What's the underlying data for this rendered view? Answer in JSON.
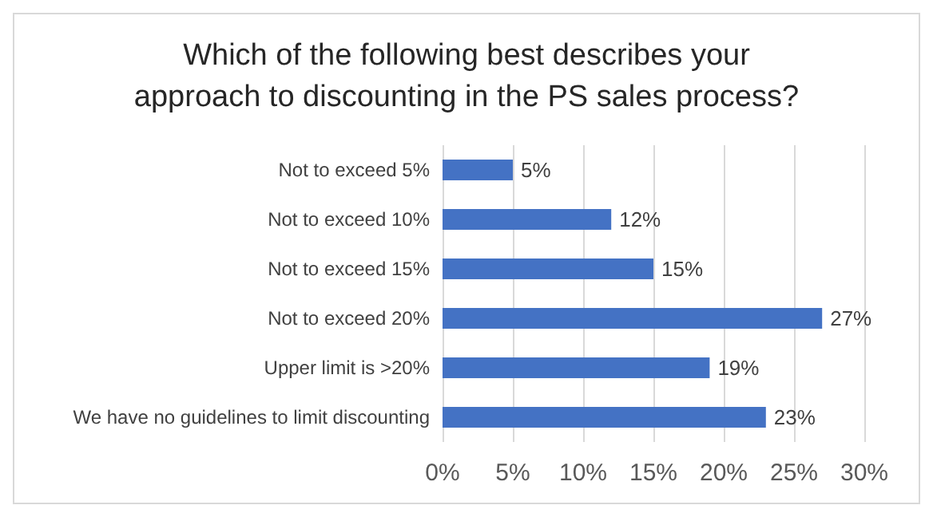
{
  "chart_data": {
    "type": "bar",
    "orientation": "horizontal",
    "title": "Which of the following best describes your\napproach to discounting in the PS sales process?",
    "categories": [
      "Not to exceed 5%",
      "Not to exceed 10%",
      "Not to exceed 15%",
      "Not to exceed 20%",
      "Upper limit is >20%",
      "We have no guidelines to limit discounting"
    ],
    "values": [
      5,
      12,
      15,
      27,
      19,
      23
    ],
    "value_labels": [
      "5%",
      "12%",
      "15%",
      "27%",
      "19%",
      "23%"
    ],
    "color": "#4472c4",
    "xlim": [
      0,
      30
    ],
    "xticks": [
      {
        "value": 0,
        "label": "0%"
      },
      {
        "value": 5,
        "label": "5%"
      },
      {
        "value": 10,
        "label": "10%"
      },
      {
        "value": 15,
        "label": "15%"
      },
      {
        "value": 20,
        "label": "20%"
      },
      {
        "value": 25,
        "label": "25%"
      },
      {
        "value": 30,
        "label": "30%"
      }
    ],
    "grid": "x"
  }
}
